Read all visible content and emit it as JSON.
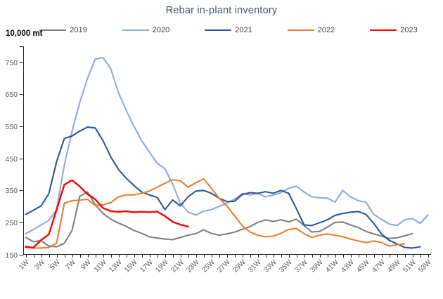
{
  "title": "Rebar in-plant inventory",
  "unit_label": "10,000 mt",
  "chart_data": {
    "type": "line",
    "title": "Rebar in-plant inventory",
    "ylabel": "10,000 mt",
    "legend_position": "top",
    "grid": false,
    "y_axis": {
      "min": 150,
      "max": 800,
      "tick_step": 100,
      "tick_labels": [
        "150",
        "250",
        "350",
        "450",
        "550",
        "650",
        "750"
      ]
    },
    "x_axis": {
      "weeks": 53,
      "tick_every": 1,
      "label_every_odd_week": true,
      "tick_labels": [
        "1W",
        "3W",
        "5W",
        "7W",
        "9W",
        "11W",
        "13W",
        "15W",
        "17W",
        "19W",
        "21W",
        "23W",
        "25W",
        "27W",
        "29W",
        "31W",
        "33W",
        "35W",
        "37W",
        "39W",
        "41W",
        "43W",
        "45W",
        "47W",
        "49W",
        "51W",
        "53W"
      ]
    },
    "series": [
      {
        "name": "2019",
        "color": "#808080",
        "start_week": 1,
        "values": [
          203,
          190,
          193,
          176,
          174,
          185,
          225,
          332,
          345,
          305,
          278,
          260,
          248,
          238,
          225,
          216,
          205,
          201,
          198,
          196,
          203,
          210,
          215,
          227,
          216,
          210,
          214,
          220,
          228,
          237,
          250,
          258,
          253,
          258,
          252,
          260,
          240,
          220,
          222,
          235,
          250,
          251,
          242,
          234,
          222,
          214,
          207,
          200,
          202,
          208,
          215
        ]
      },
      {
        "name": "2020",
        "color": "#8FAADC",
        "start_week": 1,
        "values": [
          215,
          228,
          242,
          256,
          290,
          430,
          535,
          625,
          700,
          760,
          765,
          730,
          655,
          600,
          550,
          505,
          470,
          435,
          418,
          370,
          310,
          282,
          273,
          285,
          290,
          300,
          310,
          322,
          340,
          336,
          341,
          330,
          335,
          343,
          357,
          363,
          345,
          330,
          327,
          326,
          313,
          350,
          330,
          318,
          313,
          275,
          260,
          245,
          240,
          258,
          262,
          247,
          273
        ]
      },
      {
        "name": "2021",
        "color": "#2F5597",
        "start_week": 1,
        "values": [
          275,
          288,
          302,
          340,
          440,
          512,
          520,
          535,
          548,
          545,
          505,
          455,
          415,
          388,
          365,
          345,
          336,
          328,
          290,
          320,
          302,
          330,
          348,
          350,
          341,
          326,
          315,
          316,
          337,
          343,
          341,
          346,
          341,
          350,
          341,
          293,
          242,
          240,
          249,
          258,
          272,
          278,
          282,
          284,
          275,
          247,
          214,
          194,
          183,
          172,
          170,
          174
        ]
      },
      {
        "name": "2022",
        "color": "#ED7D31",
        "start_week": 1,
        "values": [
          176,
          170,
          170,
          172,
          185,
          310,
          318,
          320,
          322,
          303,
          305,
          312,
          330,
          336,
          336,
          341,
          348,
          360,
          372,
          383,
          380,
          360,
          374,
          386,
          357,
          326,
          302,
          271,
          240,
          220,
          210,
          205,
          207,
          216,
          228,
          231,
          215,
          203,
          210,
          214,
          210,
          205,
          198,
          192,
          187,
          192,
          187,
          176,
          180,
          183
        ]
      },
      {
        "name": "2023",
        "color": "#FF0000",
        "start_week": 1,
        "values": [
          173,
          171,
          195,
          213,
          290,
          368,
          382,
          362,
          338,
          322,
          295,
          285,
          283,
          285,
          282,
          283,
          282,
          284,
          270,
          252,
          243,
          237
        ]
      }
    ],
    "axis_color": "#262626",
    "tick_label_color": "#595959"
  }
}
